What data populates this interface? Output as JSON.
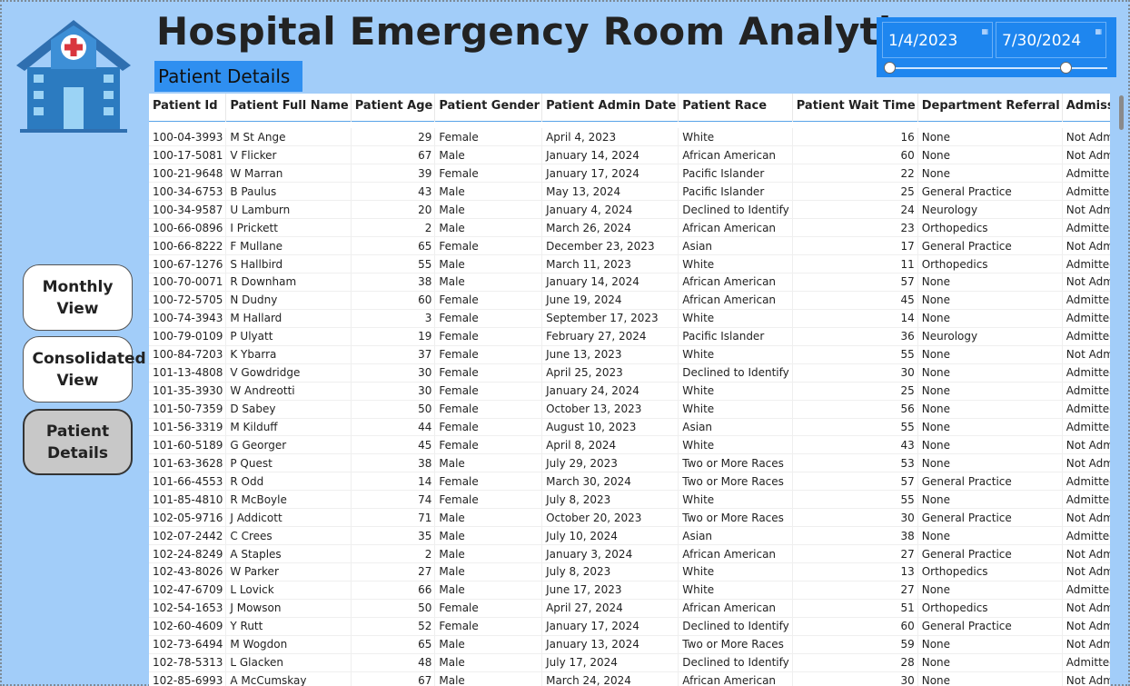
{
  "header": {
    "title": "Hospital Emergency Room Analytics",
    "subtitle": "Patient Details"
  },
  "date_slicer": {
    "start": "1/4/2023",
    "end": "7/30/2024"
  },
  "nav": {
    "monthly": "Monthly View",
    "consolidated": "Consolidated View",
    "patient_details": "Patient Details",
    "active": "patient_details"
  },
  "table": {
    "columns": [
      "Patient Id",
      "Patient Full Name",
      "Patient Age",
      "Patient Gender",
      "Patient Admin Date",
      "Patient Race",
      "Patient Wait Time",
      "Department Referral",
      "Admission Status"
    ],
    "rows": [
      [
        "100-04-3993",
        "M St Ange",
        "29",
        "Female",
        "April 4, 2023",
        "White",
        "16",
        "None",
        "Not Admitted"
      ],
      [
        "100-17-5081",
        "V Flicker",
        "67",
        "Male",
        "January 14, 2024",
        "African American",
        "60",
        "None",
        "Not Admitted"
      ],
      [
        "100-21-9648",
        "W Marran",
        "39",
        "Female",
        "January 17, 2024",
        "Pacific Islander",
        "22",
        "None",
        "Admitted"
      ],
      [
        "100-34-6753",
        "B Paulus",
        "43",
        "Male",
        "May 13, 2024",
        "Pacific Islander",
        "25",
        "General Practice",
        "Admitted"
      ],
      [
        "100-34-9587",
        "U Lamburn",
        "20",
        "Male",
        "January 4, 2024",
        "Declined to Identify",
        "24",
        "Neurology",
        "Not Admitted"
      ],
      [
        "100-66-0896",
        "I Prickett",
        "2",
        "Male",
        "March 26, 2024",
        "African American",
        "23",
        "Orthopedics",
        "Admitted"
      ],
      [
        "100-66-8222",
        "F Mullane",
        "65",
        "Female",
        "December 23, 2023",
        "Asian",
        "17",
        "General Practice",
        "Not Admitted"
      ],
      [
        "100-67-1276",
        "S Hallbird",
        "55",
        "Male",
        "March 11, 2023",
        "White",
        "11",
        "Orthopedics",
        "Admitted"
      ],
      [
        "100-70-0071",
        "R Downham",
        "38",
        "Male",
        "January 14, 2024",
        "African American",
        "57",
        "None",
        "Not Admitted"
      ],
      [
        "100-72-5705",
        "N Dudny",
        "60",
        "Female",
        "June 19, 2024",
        "African American",
        "45",
        "None",
        "Admitted"
      ],
      [
        "100-74-3943",
        "M Hallard",
        "3",
        "Female",
        "September 17, 2023",
        "White",
        "14",
        "None",
        "Admitted"
      ],
      [
        "100-79-0109",
        "P Ulyatt",
        "19",
        "Female",
        "February 27, 2024",
        "Pacific Islander",
        "36",
        "Neurology",
        "Admitted"
      ],
      [
        "100-84-7203",
        "K Ybarra",
        "37",
        "Female",
        "June 13, 2023",
        "White",
        "55",
        "None",
        "Not Admitted"
      ],
      [
        "101-13-4808",
        "V Gowdridge",
        "30",
        "Female",
        "April 25, 2023",
        "Declined to Identify",
        "30",
        "None",
        "Admitted"
      ],
      [
        "101-35-3930",
        "W Andreotti",
        "30",
        "Female",
        "January 24, 2024",
        "White",
        "25",
        "None",
        "Admitted"
      ],
      [
        "101-50-7359",
        "D Sabey",
        "50",
        "Female",
        "October 13, 2023",
        "White",
        "56",
        "None",
        "Admitted"
      ],
      [
        "101-56-3319",
        "M Kilduff",
        "44",
        "Female",
        "August 10, 2023",
        "Asian",
        "55",
        "None",
        "Admitted"
      ],
      [
        "101-60-5189",
        "G Georger",
        "45",
        "Female",
        "April 8, 2024",
        "White",
        "43",
        "None",
        "Not Admitted"
      ],
      [
        "101-63-3628",
        "P Quest",
        "38",
        "Male",
        "July 29, 2023",
        "Two or More Races",
        "53",
        "None",
        "Not Admitted"
      ],
      [
        "101-66-4553",
        "R Odd",
        "14",
        "Female",
        "March 30, 2024",
        "Two or More Races",
        "57",
        "General Practice",
        "Admitted"
      ],
      [
        "101-85-4810",
        "R McBoyle",
        "74",
        "Female",
        "July 8, 2023",
        "White",
        "55",
        "None",
        "Admitted"
      ],
      [
        "102-05-9716",
        "J Addicott",
        "71",
        "Male",
        "October 20, 2023",
        "Two or More Races",
        "30",
        "General Practice",
        "Not Admitted"
      ],
      [
        "102-07-2442",
        "C Crees",
        "35",
        "Male",
        "July 10, 2024",
        "Asian",
        "38",
        "None",
        "Admitted"
      ],
      [
        "102-24-8249",
        "A Staples",
        "2",
        "Male",
        "January 3, 2024",
        "African American",
        "27",
        "General Practice",
        "Not Admitted"
      ],
      [
        "102-43-8026",
        "W Parker",
        "27",
        "Male",
        "July 8, 2023",
        "White",
        "13",
        "Orthopedics",
        "Not Admitted"
      ],
      [
        "102-47-6709",
        "L Lovick",
        "66",
        "Male",
        "June 17, 2023",
        "White",
        "27",
        "None",
        "Admitted"
      ],
      [
        "102-54-1653",
        "J Mowson",
        "50",
        "Female",
        "April 27, 2024",
        "African American",
        "51",
        "Orthopedics",
        "Not Admitted"
      ],
      [
        "102-60-4609",
        "Y Rutt",
        "52",
        "Female",
        "January 17, 2024",
        "Declined to Identify",
        "60",
        "General Practice",
        "Not Admitted"
      ],
      [
        "102-73-6494",
        "M Wogdon",
        "65",
        "Male",
        "January 13, 2024",
        "Two or More Races",
        "59",
        "None",
        "Not Admitted"
      ],
      [
        "102-78-5313",
        "L Glacken",
        "48",
        "Male",
        "July 17, 2024",
        "Declined to Identify",
        "28",
        "None",
        "Admitted"
      ],
      [
        "102-85-6993",
        "A McCumskay",
        "67",
        "Male",
        "March 24, 2024",
        "African American",
        "30",
        "None",
        "Not Admitted"
      ]
    ]
  },
  "icons": {
    "logo": "hospital-building-icon",
    "calendar": "calendar-icon"
  },
  "colors": {
    "background": "#a2cdf9",
    "accent": "#1e86ef",
    "subtitle_bg": "#2f8ff0",
    "logo_blue": "#2c7bc0",
    "cross_red": "#d9363e"
  }
}
